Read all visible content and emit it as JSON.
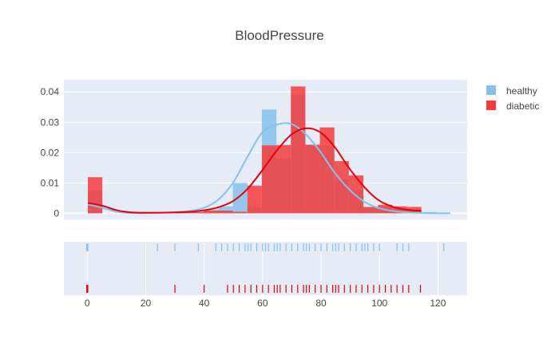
{
  "chart_data": {
    "type": "histogram",
    "title": "BloodPressure",
    "legend_position": "top-right",
    "grid": true,
    "bin_width": 5,
    "hist_xlim": [
      0,
      125
    ],
    "hist_ylim": [
      -0.002,
      0.044
    ],
    "rug_xlim": [
      -8,
      130
    ],
    "yticks": [
      0,
      0.01,
      0.02,
      0.03,
      0.04
    ],
    "ytick_labels": [
      "0",
      "0.01",
      "0.02",
      "0.03",
      "0.04"
    ],
    "xticks": [
      0,
      20,
      40,
      60,
      80,
      100,
      120
    ],
    "xtick_labels": [
      "0",
      "20",
      "40",
      "60",
      "80",
      "100",
      "120"
    ],
    "series": [
      {
        "name": "healthy",
        "color": "#85c1e9",
        "curve_color": "#85c1e9",
        "bin_starts": [
          0,
          5,
          10,
          15,
          20,
          25,
          30,
          35,
          40,
          45,
          50,
          55,
          60,
          65,
          70,
          75,
          80,
          85,
          90,
          95,
          100,
          105,
          110,
          115,
          120
        ],
        "densities": [
          0.0075,
          0,
          0,
          0.0002,
          0.0002,
          0.0004,
          0.0004,
          0.0006,
          0.0012,
          0.0023,
          0.01,
          0.0021,
          0.0342,
          0.0181,
          0.039,
          0.0225,
          0.0223,
          0.0112,
          0.0076,
          0.002,
          0.002,
          0.0012,
          0.0008,
          0.0004,
          0.0002
        ],
        "kde_x": [
          0,
          5,
          10,
          15,
          20,
          25,
          30,
          35,
          40,
          45,
          50,
          55,
          60,
          65,
          70,
          75,
          80,
          85,
          90,
          95,
          100,
          105,
          110,
          115,
          120,
          125
        ],
        "kde_y": [
          0.003,
          0.0018,
          0.0005,
          0.0001,
          0.0001,
          0.0002,
          0.0004,
          0.0008,
          0.0018,
          0.0045,
          0.01,
          0.0185,
          0.0265,
          0.0292,
          0.0295,
          0.0262,
          0.0205,
          0.0135,
          0.008,
          0.004,
          0.0018,
          0.0008,
          0.0003,
          0.0001,
          0.0,
          0.0
        ],
        "rug_values": [
          0,
          24,
          30,
          38,
          44,
          46,
          48,
          50,
          52,
          54,
          55,
          56,
          58,
          60,
          61,
          62,
          64,
          65,
          66,
          68,
          70,
          72,
          74,
          75,
          76,
          78,
          80,
          82,
          84,
          85,
          86,
          88,
          90,
          92,
          94,
          95,
          96,
          98,
          100,
          106,
          108,
          110,
          122
        ]
      },
      {
        "name": "diabetic",
        "color": "#f53c3c",
        "curve_color": "#e8000b",
        "bin_starts": [
          0,
          5,
          10,
          15,
          20,
          25,
          30,
          35,
          40,
          45,
          50,
          55,
          60,
          65,
          70,
          75,
          80,
          85,
          90,
          95,
          100,
          105,
          110,
          115,
          120
        ],
        "densities": [
          0.0119,
          0,
          0,
          0,
          0,
          0,
          0.0005,
          0.0004,
          0.0009,
          0.0009,
          0.0005,
          0.0091,
          0.0224,
          0.0225,
          0.0418,
          0.0226,
          0.0283,
          0.0172,
          0.0125,
          0.0021,
          0.0028,
          0.0023,
          0.0021,
          0,
          0
        ],
        "kde_x": [
          0,
          5,
          10,
          15,
          20,
          25,
          30,
          35,
          40,
          45,
          50,
          55,
          60,
          65,
          70,
          75,
          80,
          85,
          90,
          95,
          100,
          105,
          110,
          115
        ],
        "kde_y": [
          0.0034,
          0.0025,
          0.001,
          0.0003,
          0.0002,
          0.0002,
          0.0003,
          0.0005,
          0.001,
          0.002,
          0.004,
          0.008,
          0.014,
          0.0205,
          0.0258,
          0.028,
          0.0268,
          0.022,
          0.015,
          0.009,
          0.0045,
          0.0022,
          0.0012,
          0.0008
        ],
        "rug_values": [
          0,
          30,
          40,
          48,
          50,
          52,
          54,
          56,
          58,
          60,
          62,
          64,
          65,
          66,
          68,
          70,
          72,
          74,
          75,
          76,
          78,
          80,
          82,
          84,
          85,
          86,
          88,
          90,
          92,
          94,
          96,
          98,
          100,
          102,
          104,
          106,
          108,
          110,
          114
        ]
      }
    ]
  }
}
